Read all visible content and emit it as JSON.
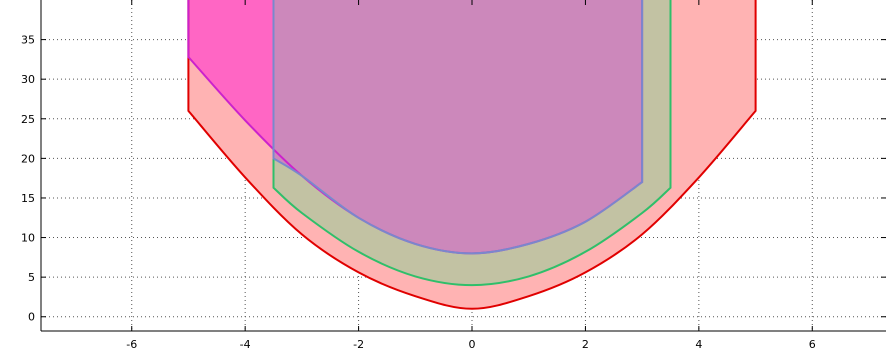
{
  "chart_data": {
    "type": "area",
    "xlim": [
      -7.6,
      7.3
    ],
    "ylim": [
      -1.8,
      40
    ],
    "grid": true,
    "x_ticks": [
      -6,
      -4,
      -2,
      0,
      2,
      4,
      6
    ],
    "y_ticks": [
      0,
      5,
      10,
      15,
      20,
      25,
      30,
      35
    ],
    "x_tick_labels": [
      "-6",
      "-4",
      "-2",
      "0",
      "2",
      "4",
      "6"
    ],
    "y_tick_labels": [
      "0",
      "5",
      "10",
      "15",
      "20",
      "25",
      "30",
      "35"
    ],
    "series": [
      {
        "colors": {
          "fill": "#ffb3b3",
          "edge": "#e00000"
        },
        "x_range": [
          -5,
          5
        ],
        "boundary": [
          [
            -5,
            26
          ],
          [
            -4,
            17.6
          ],
          [
            -3,
            10.4
          ],
          [
            -2,
            5.6
          ],
          [
            -1,
            2.6
          ],
          [
            0,
            1
          ],
          [
            1,
            2.6
          ],
          [
            2,
            5.6
          ],
          [
            3,
            10.4
          ],
          [
            4,
            17.6
          ],
          [
            5,
            26
          ]
        ]
      },
      {
        "colors": {
          "fill": "#c2c2a3",
          "edge": "#2fbf6a"
        },
        "x_range": [
          -3.5,
          3.5
        ],
        "boundary": [
          [
            -3.5,
            16.3
          ],
          [
            -3,
            13.1
          ],
          [
            -2,
            8.2
          ],
          [
            -1,
            5.1
          ],
          [
            0,
            4
          ],
          [
            1,
            5.1
          ],
          [
            2,
            8.2
          ],
          [
            3,
            13.1
          ],
          [
            3.5,
            16.3
          ]
        ]
      },
      {
        "colors": {
          "fill": "#ff66c4",
          "edge": "#cc22cc"
        },
        "x_range": [
          -5,
          3
        ],
        "boundary": [
          [
            -5,
            32.8
          ],
          [
            -4,
            24.8
          ],
          [
            -3,
            17.8
          ],
          [
            -2,
            12.5
          ],
          [
            -1,
            9.2
          ],
          [
            0,
            8
          ],
          [
            1,
            9.2
          ],
          [
            2,
            12
          ],
          [
            3,
            17
          ]
        ]
      },
      {
        "colors": {
          "fill": "#cc88bb",
          "edge": "#7a88cc"
        },
        "x_range": [
          -3.5,
          3
        ],
        "boundary": [
          [
            -3.5,
            20
          ],
          [
            -3,
            17.8
          ],
          [
            -2,
            12.5
          ],
          [
            -1,
            9.2
          ],
          [
            0,
            8
          ],
          [
            1,
            9.2
          ],
          [
            2,
            12
          ],
          [
            3,
            17
          ]
        ]
      }
    ]
  }
}
